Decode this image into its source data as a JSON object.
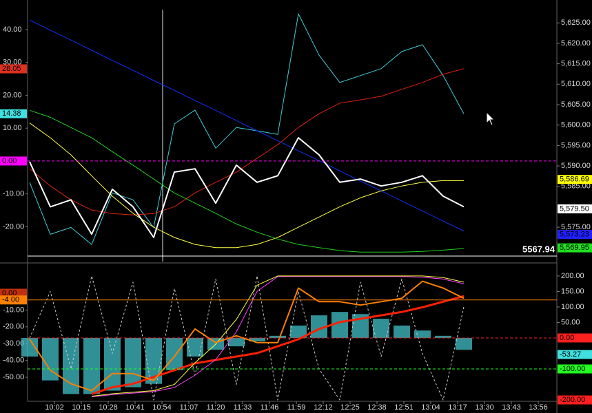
{
  "chart_data": [
    {
      "type": "line",
      "x": [
        "09:50",
        "10:00",
        "10:10",
        "10:20",
        "10:30",
        "10:40",
        "10:50",
        "11:00",
        "11:10",
        "11:20",
        "11:30",
        "11:40",
        "11:50",
        "12:00",
        "12:10",
        "12:20",
        "12:30",
        "12:40",
        "12:50",
        "13:00",
        "13:10",
        "13:20"
      ],
      "xlim": [
        "09:49",
        "14:05"
      ],
      "ylim": [
        -30.6,
        49
      ],
      "yticks": [
        {
          "value": 40,
          "label": "40.00"
        },
        {
          "value": 30,
          "label": "30.00"
        },
        {
          "value": 20,
          "label": "20.00"
        },
        {
          "value": 10,
          "label": "10.00"
        },
        {
          "value": -10,
          "label": "-10.00"
        },
        {
          "value": -20,
          "label": "-20.00"
        }
      ],
      "y2lim": [
        5566.6,
        5630.6
      ],
      "y2ticks": [
        {
          "value": 5625,
          "label": "5,625.00"
        },
        {
          "value": 5620,
          "label": "5,620.00"
        },
        {
          "value": 5615,
          "label": "5,615.00"
        },
        {
          "value": 5610,
          "label": "5,610.00"
        },
        {
          "value": 5605,
          "label": "5,605.00"
        },
        {
          "value": 5600,
          "label": "5,600.00"
        },
        {
          "value": 5595,
          "label": "5,595.00"
        },
        {
          "value": 5590,
          "label": "5,590.00"
        },
        {
          "value": 5585,
          "label": "5,585.00"
        },
        {
          "value": 5575,
          "label": "5,575.00"
        }
      ],
      "series": [
        {
          "color": "#40d0d8",
          "width": 1,
          "axis": "y",
          "values": [
            -6.5,
            -22.3,
            -20.2,
            -25.4,
            -9.7,
            -11.8,
            -20.2,
            11.3,
            15.5,
            3.9,
            10.2,
            9.2,
            8.1,
            44.8,
            32.2,
            23.9,
            26.0,
            28.1,
            33.3,
            35.4,
            26.0,
            14.4
          ]
        },
        {
          "color": "#e02010",
          "width": 1,
          "axis": "y",
          "values": [
            -2.3,
            -7.6,
            -11.8,
            -14.9,
            -16.0,
            -16.4,
            -16.0,
            -13.9,
            -9.7,
            -6.5,
            -3.4,
            0.8,
            5.0,
            10.2,
            14.4,
            17.6,
            18.6,
            19.7,
            21.8,
            23.9,
            26.4,
            28.1
          ]
        },
        {
          "color": "#1030ff",
          "width": 1,
          "axis": "y2",
          "values": [
            5625.7,
            5623.2,
            5620.8,
            5618.3,
            5615.8,
            5613.4,
            5610.9,
            5608.5,
            5606.0,
            5603.6,
            5601.1,
            5598.6,
            5596.2,
            5593.7,
            5591.3,
            5588.8,
            5586.3,
            5583.9,
            5581.4,
            5579.0,
            5576.5,
            5574.1
          ]
        },
        {
          "color": "#ffff40",
          "width": 1,
          "axis": "y2",
          "values": [
            5600.5,
            5596.9,
            5592.7,
            5587.6,
            5582.6,
            5578.4,
            5575.0,
            5572.5,
            5570.8,
            5570.0,
            5570.0,
            5570.8,
            5572.5,
            5575.0,
            5577.5,
            5580.0,
            5582.2,
            5583.9,
            5585.1,
            5586.0,
            5586.4,
            5586.4
          ]
        },
        {
          "color": "#20d020",
          "width": 1,
          "axis": "y2",
          "values": [
            5603.6,
            5601.9,
            5599.4,
            5596.9,
            5593.5,
            5590.2,
            5586.8,
            5583.4,
            5580.9,
            5578.4,
            5575.8,
            5573.8,
            5572.1,
            5570.8,
            5570.0,
            5569.3,
            5568.9,
            5568.9,
            5568.9,
            5569.1,
            5569.4,
            5569.8
          ]
        },
        {
          "color": "#ffffff",
          "width": 2,
          "axis": "y2",
          "values": [
            5591.0,
            5580.0,
            5581.7,
            5573.3,
            5584.3,
            5580.0,
            5572.5,
            5588.5,
            5589.3,
            5580.9,
            5590.2,
            5586.0,
            5587.6,
            5596.9,
            5592.7,
            5586.0,
            5586.8,
            5585.1,
            5586.0,
            5587.6,
            5582.6,
            5580.0
          ]
        }
      ],
      "markers": [
        {
          "value": 28.05,
          "label": "28.05",
          "color": "#e03020",
          "axis": "y"
        },
        {
          "value": 14.38,
          "label": "14.38",
          "color": "#40e0e0",
          "axis": "y"
        },
        {
          "value": 0,
          "label": "0.00",
          "color": "#ff00ff",
          "axis": "y",
          "line": "dashed"
        },
        {
          "value": 5586.69,
          "label": "5,586.69",
          "color": "#ffff00",
          "axis": "y2"
        },
        {
          "value": 5579.5,
          "label": "5,579.50",
          "color": "#ffffff",
          "axis": "y2"
        },
        {
          "value": 5573.23,
          "label": "5,573.23",
          "color": "#2020ff",
          "axis": "y2"
        },
        {
          "value": 5569.95,
          "label": "5,569.95",
          "color": "#20e020",
          "axis": "y2"
        },
        {
          "value": 5567.94,
          "label": "5567.94",
          "color": "#ffffff",
          "axis": "y2",
          "line": "solid",
          "style": "text"
        }
      ]
    },
    {
      "type": "line",
      "x": [
        "09:50",
        "10:00",
        "10:10",
        "10:20",
        "10:30",
        "10:40",
        "10:50",
        "11:00",
        "11:10",
        "11:20",
        "11:30",
        "11:40",
        "11:50",
        "12:00",
        "12:10",
        "12:20",
        "12:30",
        "12:40",
        "12:50",
        "13:00",
        "13:10",
        "13:20"
      ],
      "xlim": [
        "09:49",
        "14:05"
      ],
      "xticks": [
        "10:02",
        "10:15",
        "10:28",
        "10:41",
        "10:54",
        "11:07",
        "11:20",
        "11:33",
        "11:46",
        "11:59",
        "12:12",
        "12:25",
        "12:38",
        "12:51",
        "13:04",
        "13:17",
        "13:30",
        "13:43",
        "13:56"
      ],
      "ylim": [
        -64.3,
        17.2
      ],
      "yticks": [
        {
          "value": -10,
          "label": "-10.00"
        },
        {
          "value": -20,
          "label": "-20.00"
        },
        {
          "value": -30,
          "label": "-30.00"
        },
        {
          "value": -40,
          "label": "-40.00"
        },
        {
          "value": -50,
          "label": "-50.00"
        }
      ],
      "y2lim": [
        -204.4,
        237.6
      ],
      "y2ticks": [
        {
          "value": 200,
          "label": "200.00"
        },
        {
          "value": 150,
          "label": "150.00"
        },
        {
          "value": 100,
          "label": "100.00"
        },
        {
          "value": 50,
          "label": "50.00"
        }
      ],
      "series": [
        {
          "color": "#40c0c8",
          "style": "bar",
          "axis": "y2",
          "values": [
            -60,
            -137,
            -181,
            -181,
            -170,
            -159,
            -148,
            -104,
            -60,
            -38,
            -27,
            -11,
            7,
            40,
            73,
            84,
            77,
            62,
            40,
            24,
            7,
            -38
          ]
        },
        {
          "color": "#d0d0d0",
          "width": 1,
          "style": "dashed",
          "axis": "y2",
          "values": [
            0,
            150,
            -100,
            200,
            -50,
            180,
            -200,
            160,
            -120,
            190,
            -150,
            200,
            -200,
            150,
            -100,
            -200,
            180,
            -60,
            190,
            -50,
            -200,
            100
          ]
        },
        {
          "color": "#ff2000",
          "width": 3,
          "axis": "y2",
          "values": [
            null,
            null,
            null,
            -181,
            -159,
            -148,
            -126,
            -104,
            -82,
            -71,
            -60,
            -49,
            -27,
            -4,
            29,
            51,
            62,
            73,
            84,
            99,
            117,
            135
          ]
        },
        {
          "color": "#ff40ff",
          "width": 1,
          "axis": "y2",
          "values": [
            null,
            null,
            null,
            -190,
            -183,
            -178,
            -173,
            -160,
            -120,
            -70,
            20,
            150,
            198,
            198,
            198,
            198,
            198,
            198,
            198,
            196,
            190,
            175
          ]
        },
        {
          "color": "#ffff40",
          "width": 1,
          "axis": "y2",
          "values": [
            null,
            null,
            null,
            -188,
            -180,
            -175,
            -170,
            -150,
            -80,
            -20,
            60,
            170,
            200,
            200,
            200,
            200,
            200,
            200,
            200,
            200,
            195,
            180
          ]
        },
        {
          "color": "#ff8000",
          "width": 2,
          "axis": "y2",
          "values": [
            -4,
            -104,
            -148,
            -170,
            -115,
            -115,
            -137,
            -60,
            29,
            -15,
            7,
            -15,
            -15,
            161,
            117,
            117,
            106,
            117,
            128,
            183,
            161,
            128
          ]
        }
      ],
      "markers": [
        {
          "value": 0,
          "label": "0.00",
          "color": "#c03010",
          "axis": "y"
        },
        {
          "value": -4,
          "label": "-4.00",
          "color": "#ff8000",
          "axis": "y",
          "line": "solid"
        },
        {
          "value": 0,
          "label": "0.00",
          "color": "#ff2020",
          "axis": "y2",
          "line": "dashed"
        },
        {
          "value": -53.27,
          "label": "-53.27",
          "color": "#40e0e0",
          "axis": "y2"
        },
        {
          "value": -100,
          "label": "-100.00",
          "color": "#20ff20",
          "axis": "y2",
          "line": "dashed"
        },
        {
          "value": -200,
          "label": "-200.00",
          "color": "#ff2020",
          "axis": "y2"
        }
      ]
    }
  ]
}
